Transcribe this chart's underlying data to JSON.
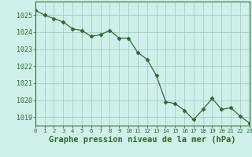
{
  "x": [
    0,
    1,
    2,
    3,
    4,
    5,
    6,
    7,
    8,
    9,
    10,
    11,
    12,
    13,
    14,
    15,
    16,
    17,
    18,
    19,
    20,
    21,
    22,
    23
  ],
  "y": [
    1025.3,
    1025.0,
    1024.8,
    1024.6,
    1024.2,
    1024.1,
    1023.75,
    1023.85,
    1024.1,
    1023.65,
    1023.65,
    1022.8,
    1022.4,
    1021.45,
    1019.9,
    1019.8,
    1019.4,
    1018.85,
    1019.45,
    1020.1,
    1019.45,
    1019.55,
    1019.05,
    1018.65
  ],
  "line_color": "#2d6a2d",
  "marker": "D",
  "marker_size": 2.5,
  "background_color": "#cff0ea",
  "grid_color": "#aaccc6",
  "xlabel": "Graphe pression niveau de la mer (hPa)",
  "xlim": [
    0,
    23
  ],
  "ylim": [
    1018.5,
    1025.8
  ],
  "yticks": [
    1019,
    1020,
    1021,
    1022,
    1023,
    1024,
    1025
  ],
  "xticks": [
    0,
    1,
    2,
    3,
    4,
    5,
    6,
    7,
    8,
    9,
    10,
    11,
    12,
    13,
    14,
    15,
    16,
    17,
    18,
    19,
    20,
    21,
    22,
    23
  ],
  "tick_color": "#2d6a2d",
  "xlabel_fontsize": 7.5,
  "xlabel_fontweight": "bold",
  "ytick_fontsize": 6.0,
  "xtick_fontsize": 5.2
}
